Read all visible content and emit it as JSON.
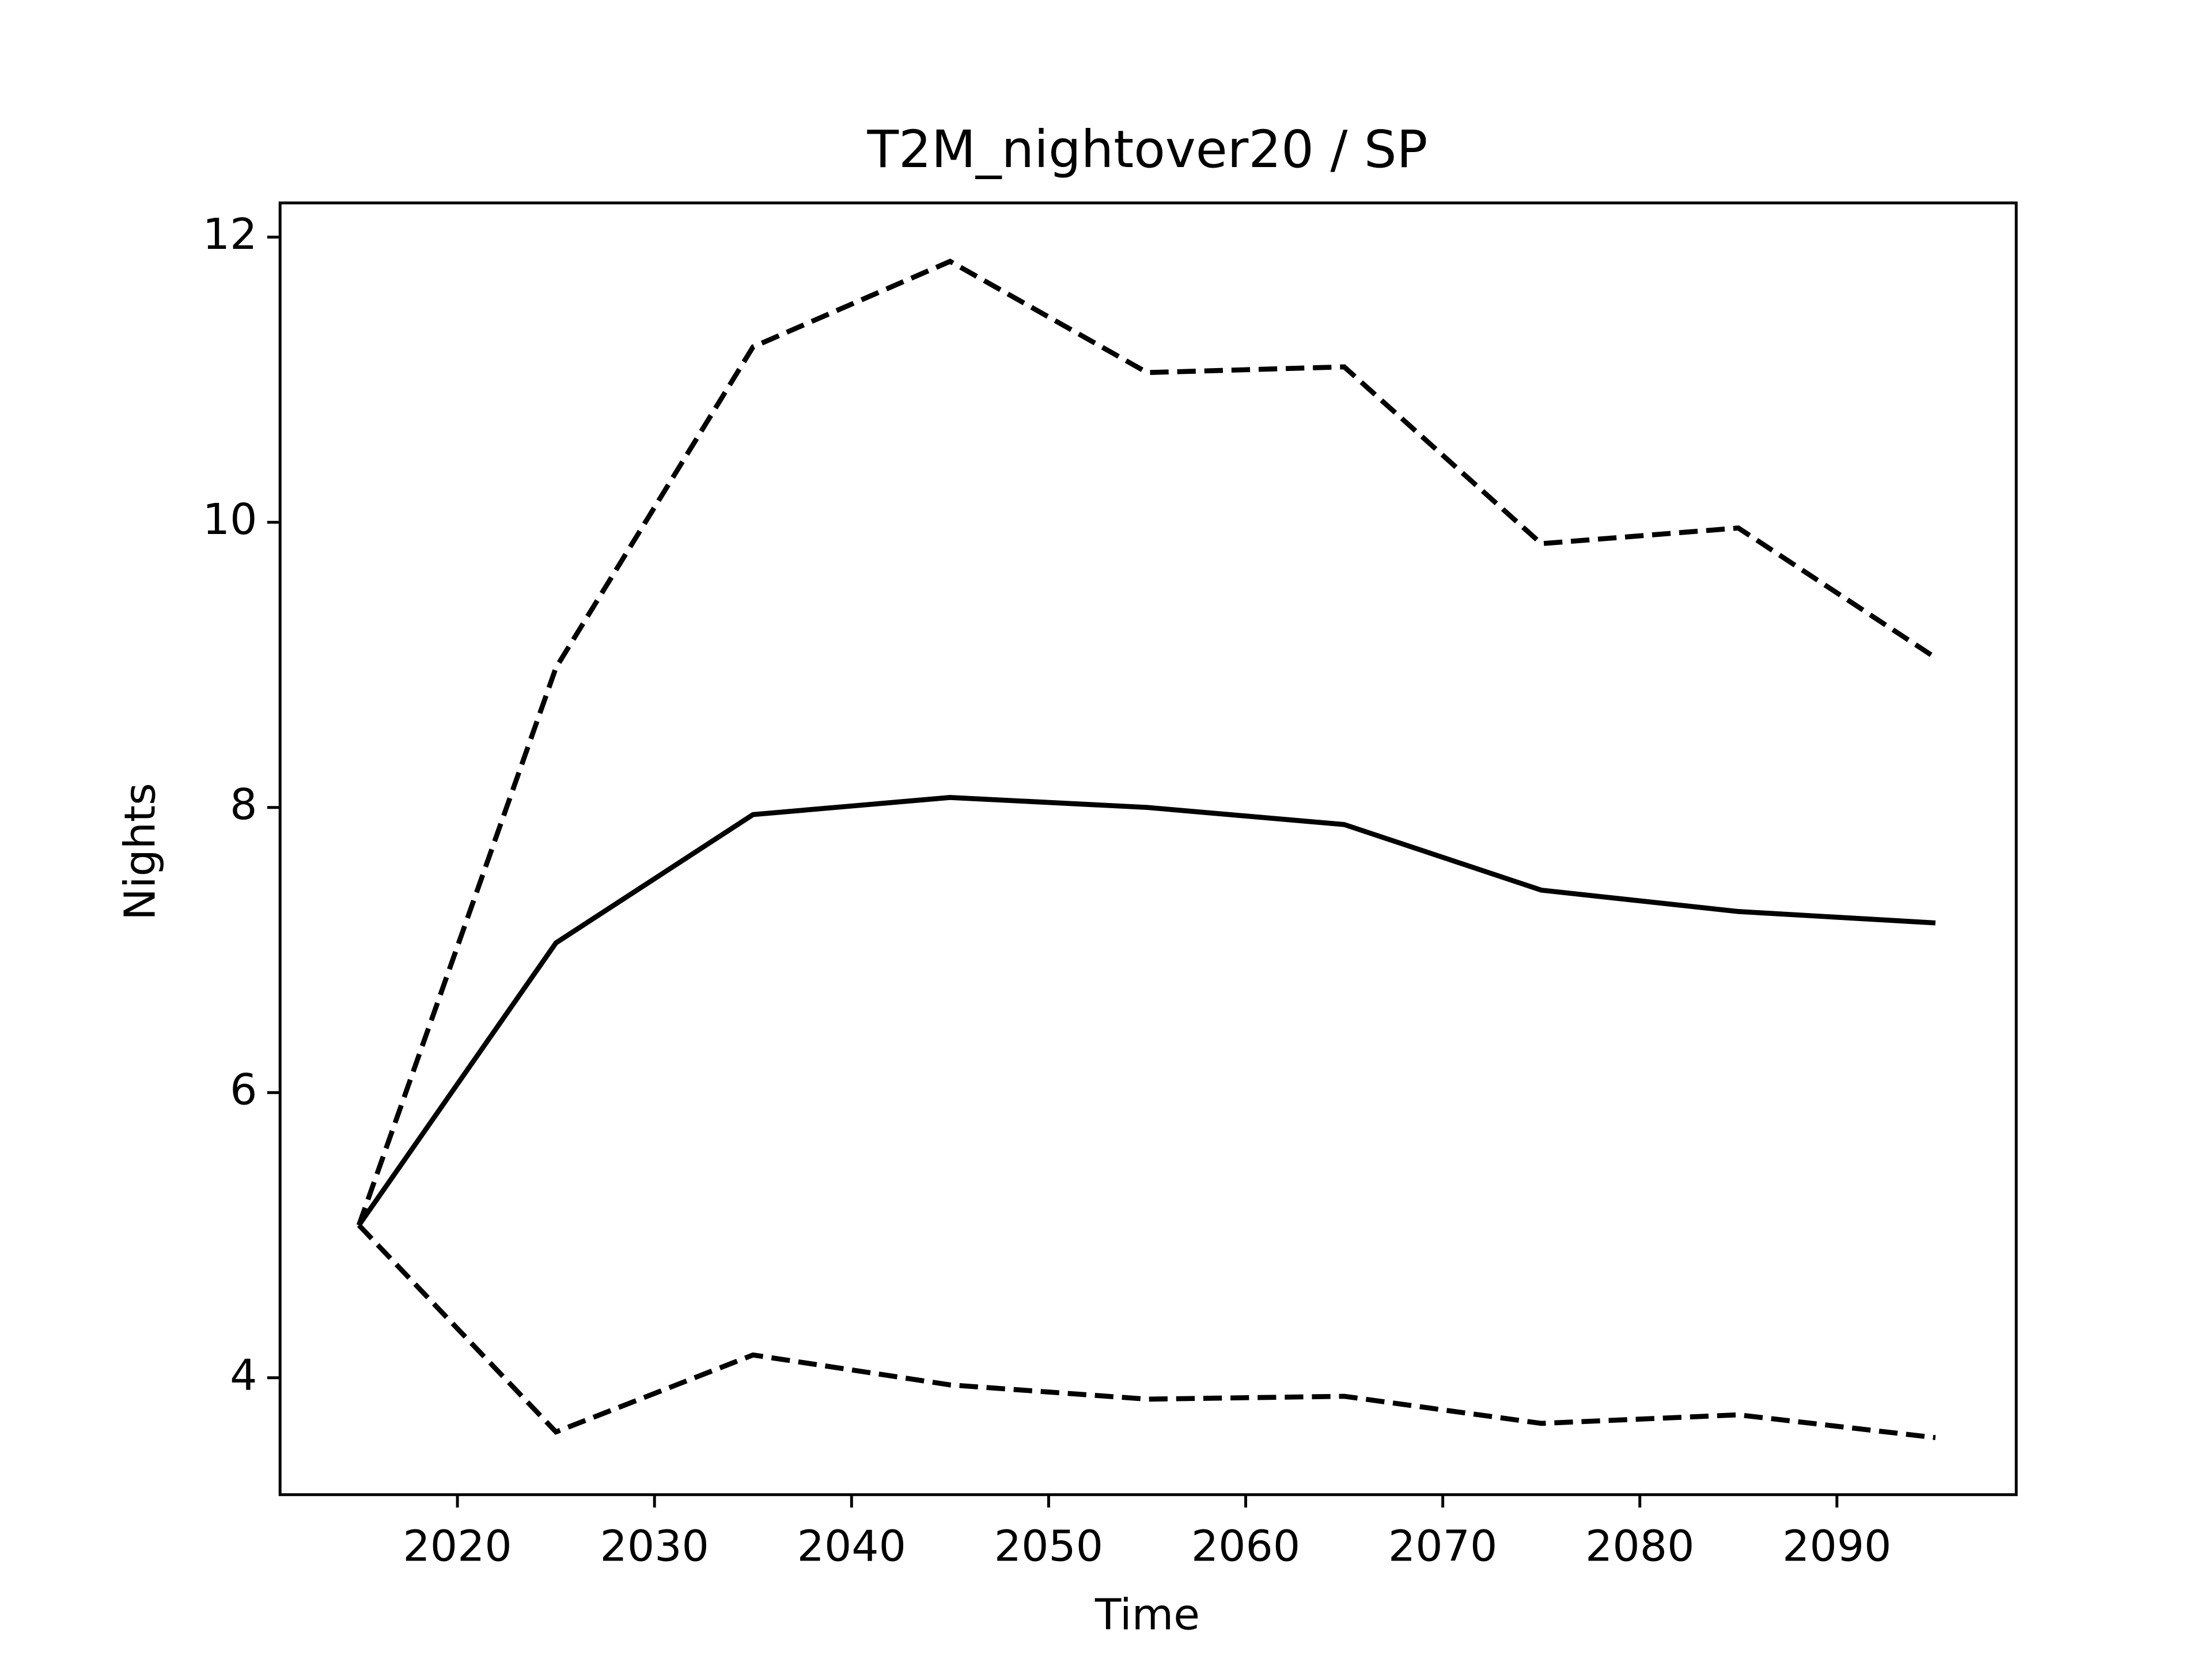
{
  "chart_data": {
    "type": "line",
    "title": "T2M_nightover20 / SP",
    "xlabel": "Time",
    "ylabel": "Nights",
    "x": [
      2015,
      2025,
      2035,
      2045,
      2055,
      2065,
      2075,
      2085,
      2095
    ],
    "series": [
      {
        "color": "#000000",
        "linestyle": "solid",
        "values": [
          5.07,
          7.05,
          7.95,
          8.07,
          8.0,
          7.88,
          7.42,
          7.27,
          7.19
        ]
      },
      {
        "color": "#000000",
        "linestyle": "dashed",
        "values": [
          5.07,
          8.98,
          11.23,
          11.83,
          11.05,
          11.09,
          9.85,
          9.96,
          9.05
        ]
      },
      {
        "color": "#000000",
        "linestyle": "dashed",
        "values": [
          5.07,
          3.62,
          4.16,
          3.95,
          3.85,
          3.87,
          3.68,
          3.74,
          3.58
        ]
      }
    ],
    "xlim": [
      2011,
      2099.1
    ],
    "ylim": [
      3.18,
      12.24
    ],
    "xticks": [
      2020,
      2030,
      2040,
      2050,
      2060,
      2070,
      2080,
      2090
    ],
    "yticks": [
      4,
      6,
      8,
      10,
      12
    ],
    "grid": false
  }
}
